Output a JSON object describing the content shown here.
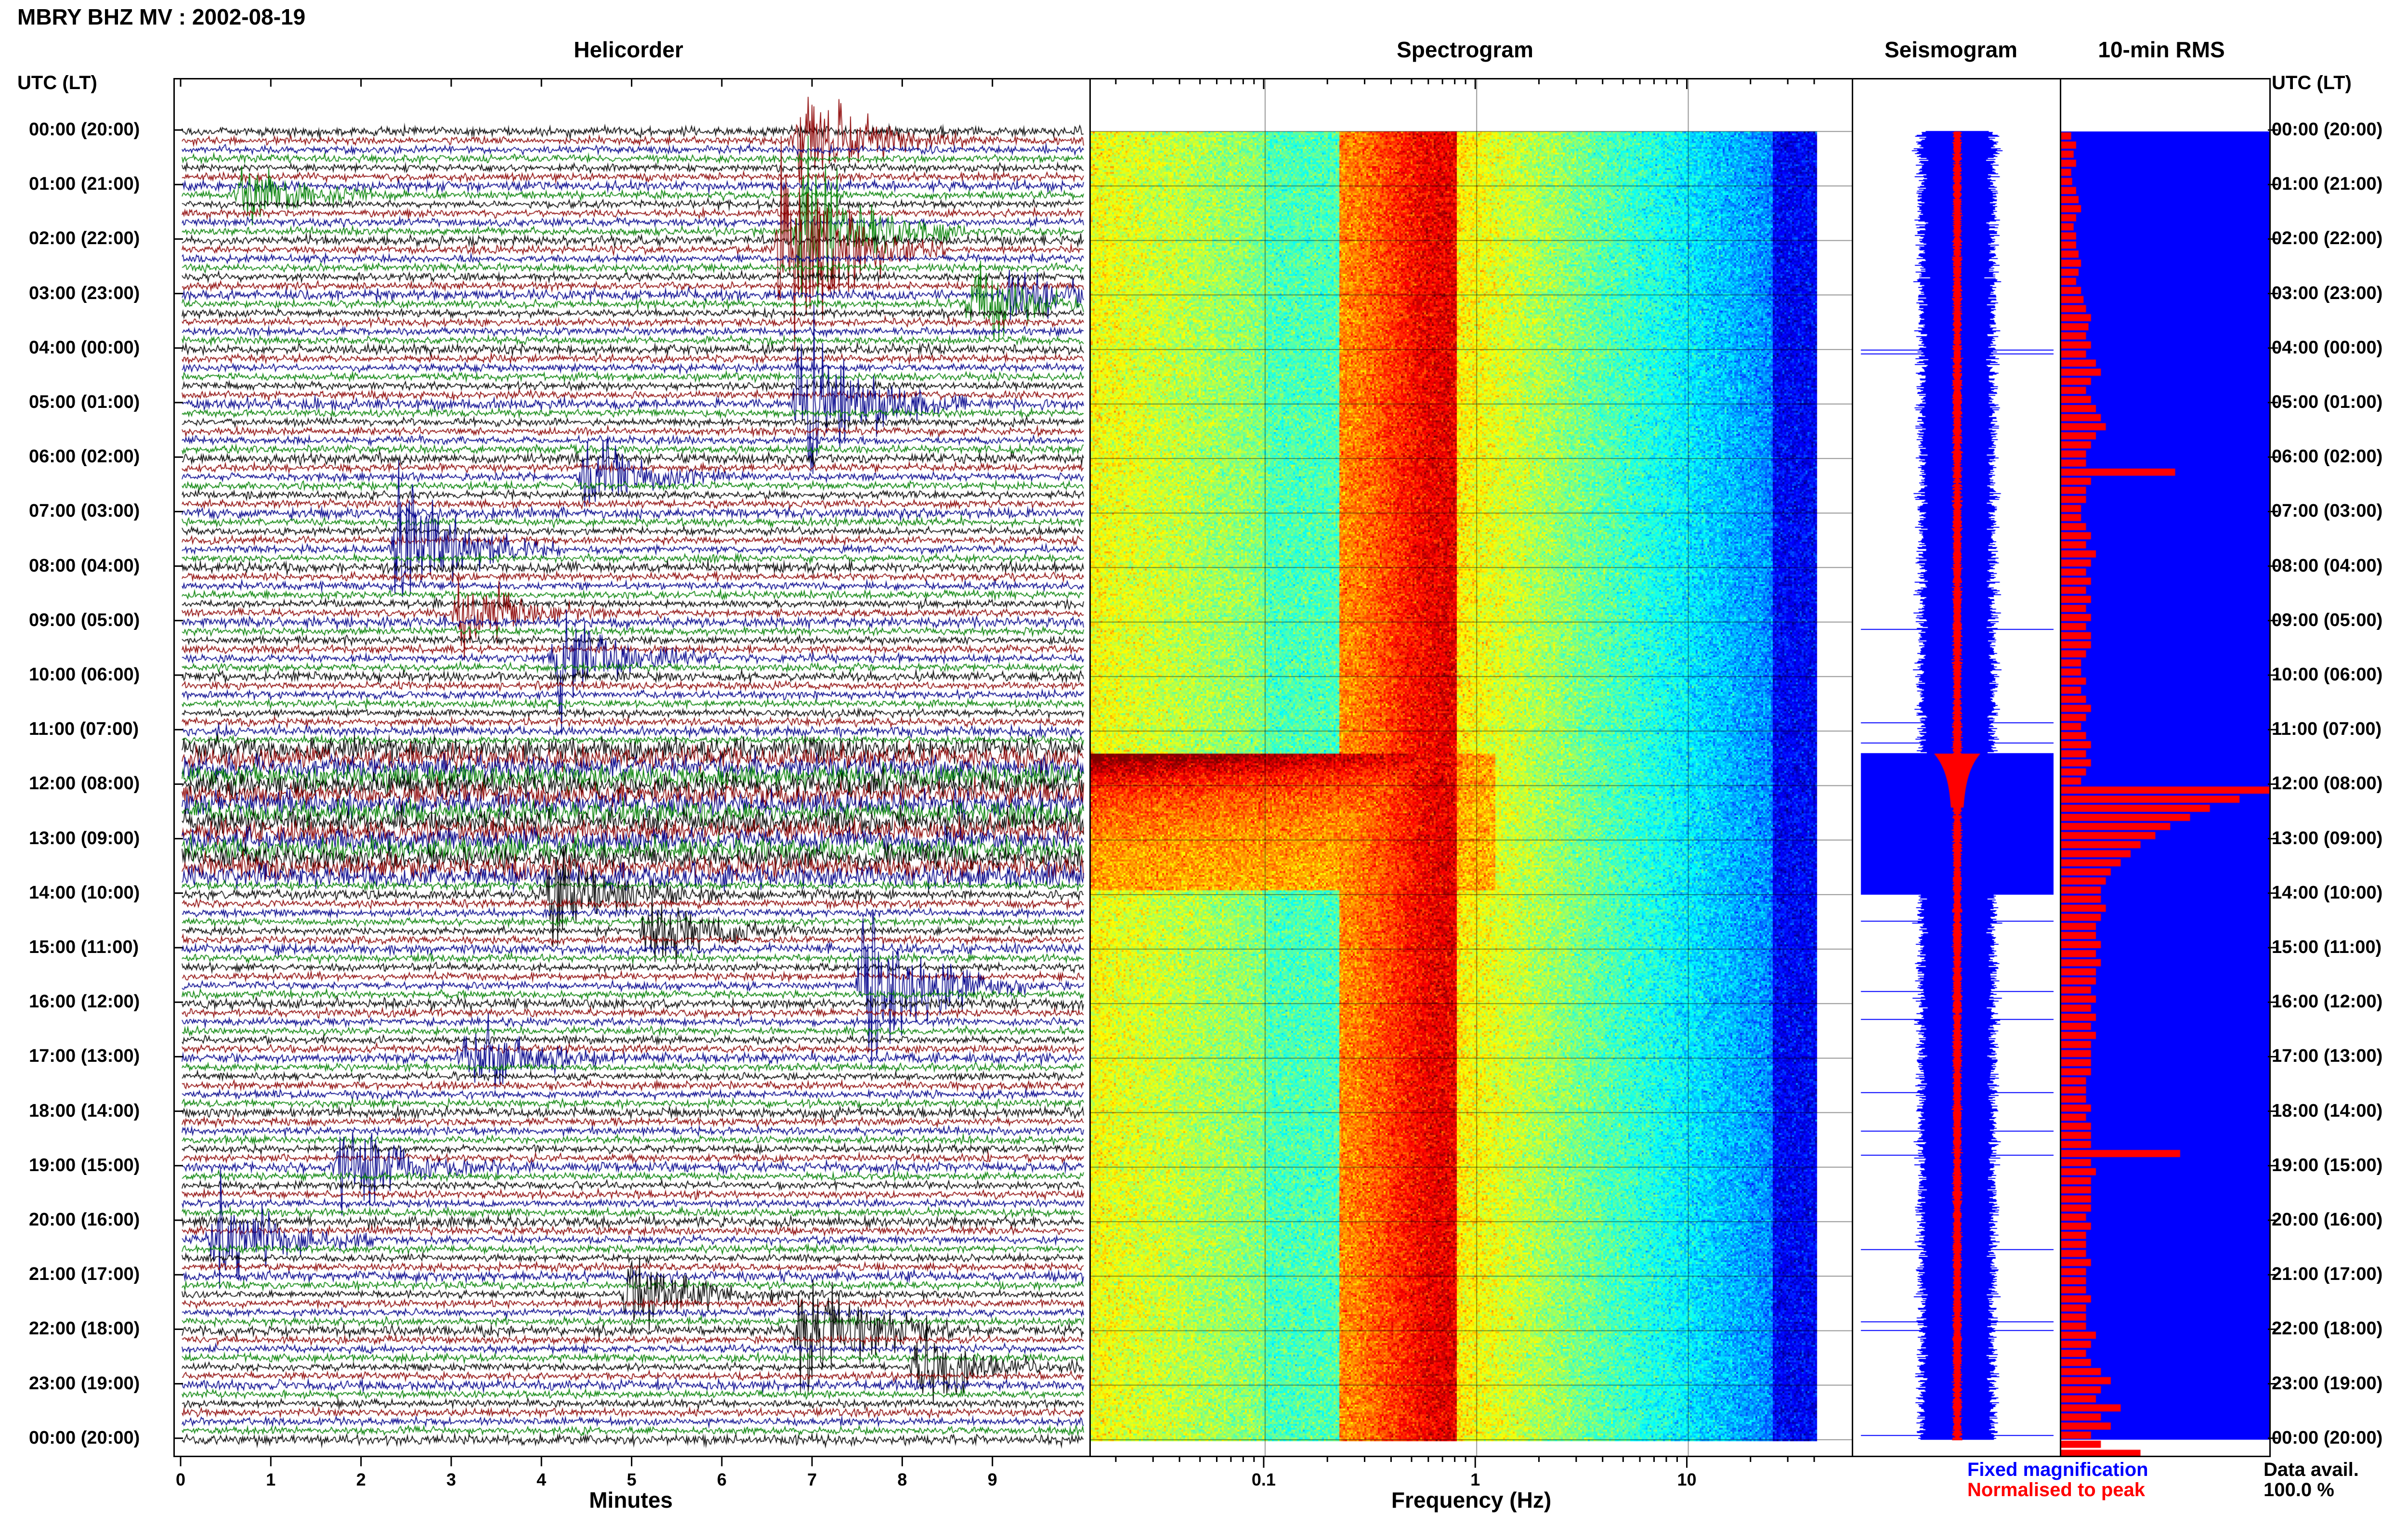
{
  "title": "MBRY BHZ MV : 2002-08-19",
  "panels": {
    "helicorder": "Helicorder",
    "spectrogram": "Spectrogram",
    "seismogram": "Seismogram",
    "rms": "10-min RMS"
  },
  "axis_head_left": "UTC (LT)",
  "axis_head_right": "UTC (LT)",
  "time_labels": [
    "00:00 (20:00)",
    "01:00 (21:00)",
    "02:00 (22:00)",
    "03:00 (23:00)",
    "04:00 (00:00)",
    "05:00 (01:00)",
    "06:00 (02:00)",
    "07:00 (03:00)",
    "08:00 (04:00)",
    "09:00 (05:00)",
    "10:00 (06:00)",
    "11:00 (07:00)",
    "12:00 (08:00)",
    "13:00 (09:00)",
    "14:00 (10:00)",
    "15:00 (11:00)",
    "16:00 (12:00)",
    "17:00 (13:00)",
    "18:00 (14:00)",
    "19:00 (15:00)",
    "20:00 (16:00)",
    "21:00 (17:00)",
    "22:00 (18:00)",
    "23:00 (19:00)",
    "00:00 (20:00)"
  ],
  "helicorder_xlabel": "Minutes",
  "helicorder_ticks": [
    "0",
    "1",
    "2",
    "3",
    "4",
    "5",
    "6",
    "7",
    "8",
    "9"
  ],
  "spectrogram_xlabel": "Frequency (Hz)",
  "spectrogram_ticks": [
    "0.1",
    "1",
    "10"
  ],
  "legend": {
    "fixed": "Fixed magnification",
    "normalised": "Normalised to peak",
    "data_avail_label": "Data avail.",
    "data_avail_value": "100.0 %"
  },
  "colors": {
    "trace_black": "#000000",
    "trace_red": "#8b0000",
    "trace_blue": "#00008b",
    "trace_green": "#008000",
    "seismo_blue": "#0000ff",
    "seismo_red": "#ff0000",
    "rms_bg": "#0000ff",
    "rms_bar": "#ff0000"
  },
  "chart_data": [
    {
      "type": "line",
      "name": "helicorder",
      "xlabel": "Minutes",
      "x_range": [
        0,
        10
      ],
      "rows_per_hour": 6,
      "hours": 24,
      "events": [
        {
          "row": 1,
          "minute": 6.9,
          "amp": 4
        },
        {
          "row": 7,
          "minute": 0.7,
          "amp": 2
        },
        {
          "row": 11,
          "minute": 6.9,
          "amp": 6
        },
        {
          "row": 13,
          "minute": 6.7,
          "amp": 9
        },
        {
          "row": 18,
          "minute": 9.2,
          "amp": 2
        },
        {
          "row": 19,
          "minute": 8.8,
          "amp": 3
        },
        {
          "row": 30,
          "minute": 6.9,
          "amp": 7
        },
        {
          "row": 38,
          "minute": 4.5,
          "amp": 3
        },
        {
          "row": 46,
          "minute": 2.4,
          "amp": 6
        },
        {
          "row": 53,
          "minute": 3.1,
          "amp": 3
        },
        {
          "row": 58,
          "minute": 4.2,
          "amp": 4
        },
        {
          "row": 84,
          "minute": 4.1,
          "amp": 4
        },
        {
          "row": 88,
          "minute": 5.2,
          "amp": 3
        },
        {
          "row": 94,
          "minute": 7.6,
          "amp": 7
        },
        {
          "row": 102,
          "minute": 3.2,
          "amp": 3
        },
        {
          "row": 114,
          "minute": 1.8,
          "amp": 3
        },
        {
          "row": 122,
          "minute": 0.4,
          "amp": 4
        },
        {
          "row": 128,
          "minute": 5.0,
          "amp": 3
        },
        {
          "row": 132,
          "minute": 6.9,
          "amp": 6
        },
        {
          "row": 136,
          "minute": 8.2,
          "amp": 3
        }
      ],
      "tremor_hours": [
        11,
        13
      ]
    },
    {
      "type": "heatmap",
      "name": "spectrogram",
      "xlabel": "Frequency (Hz)",
      "x_scale": "log",
      "x_range": [
        0.015,
        40
      ],
      "peak_band_hz": [
        0.25,
        0.7
      ],
      "event_hour": 11.4
    },
    {
      "type": "line",
      "name": "seismogram",
      "series_labels": [
        "Fixed magnification",
        "Normalised to peak"
      ]
    },
    {
      "type": "bar",
      "name": "10-min RMS",
      "orientation": "horizontal",
      "bins_per_hour": 6,
      "values": [
        0.2,
        0.3,
        0.25,
        0.3,
        0.2,
        0.22,
        0.3,
        0.35,
        0.4,
        0.3,
        0.25,
        0.3,
        0.3,
        0.35,
        0.4,
        0.35,
        0.3,
        0.4,
        0.45,
        0.5,
        0.6,
        0.55,
        0.5,
        0.6,
        0.5,
        0.7,
        0.8,
        0.6,
        0.5,
        0.6,
        0.7,
        0.8,
        0.9,
        0.7,
        0.6,
        0.5,
        0.5,
        2.3,
        0.6,
        0.5,
        0.5,
        0.4,
        0.4,
        0.5,
        0.6,
        0.5,
        0.7,
        0.6,
        0.5,
        0.6,
        0.5,
        0.6,
        0.5,
        0.6,
        0.5,
        0.6,
        0.6,
        0.5,
        0.4,
        0.4,
        0.5,
        0.4,
        0.5,
        0.6,
        0.5,
        0.4,
        0.5,
        0.6,
        0.5,
        0.6,
        0.5,
        0.4,
        4.2,
        3.6,
        3.0,
        2.6,
        2.2,
        1.9,
        1.6,
        1.4,
        1.2,
        1.0,
        0.9,
        0.8,
        0.8,
        0.9,
        0.8,
        0.7,
        0.7,
        0.8,
        0.7,
        0.8,
        0.7,
        0.7,
        0.6,
        0.7,
        0.6,
        0.7,
        0.6,
        0.7,
        0.6,
        0.6,
        0.6,
        0.6,
        0.5,
        0.5,
        0.5,
        0.6,
        0.5,
        0.6,
        0.6,
        0.6,
        2.4,
        0.6,
        0.7,
        0.6,
        0.6,
        0.6,
        0.6,
        0.5,
        0.6,
        0.5,
        0.5,
        0.5,
        0.6,
        0.5,
        0.5,
        0.5,
        0.6,
        0.5,
        0.5,
        0.5,
        0.7,
        0.6,
        0.5,
        0.6,
        0.8,
        1.0,
        0.8,
        0.7,
        1.2,
        0.8,
        1.0,
        0.6,
        0.8,
        1.6
      ]
    }
  ]
}
